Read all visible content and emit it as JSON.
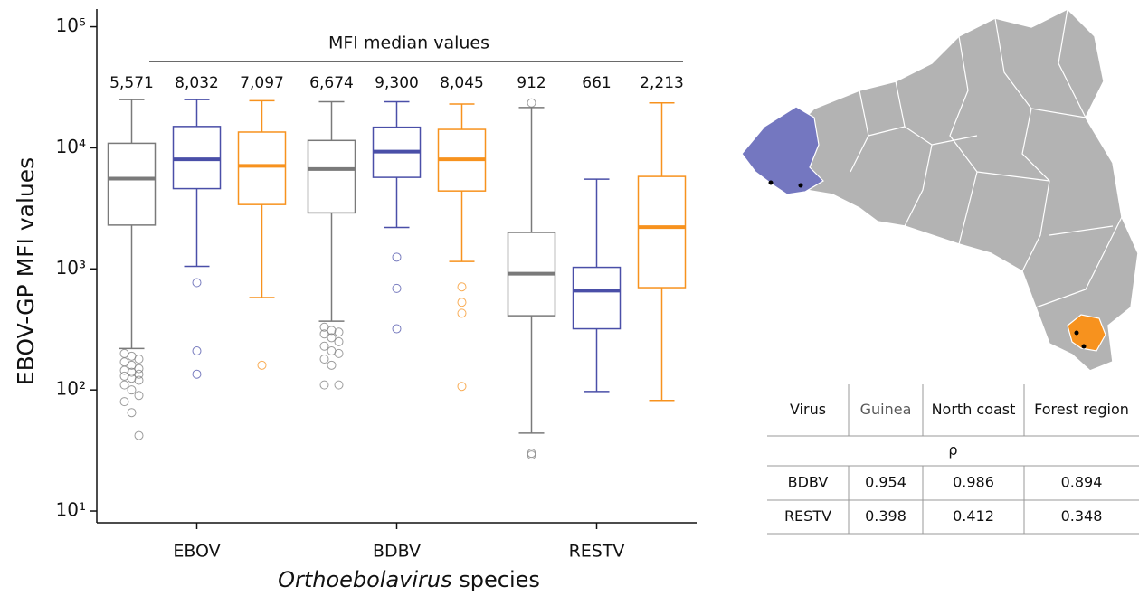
{
  "chart_data": {
    "type": "box",
    "log_y": true,
    "ylabel": "EBOV-GP MFI values",
    "xlabel": [
      "Orthoebolavirus",
      "species"
    ],
    "annotation": "MFI median values",
    "categories": [
      "EBOV",
      "BDBV",
      "RESTV"
    ],
    "ylim": [
      8,
      140000
    ],
    "yticks": [
      {
        "value": 10,
        "label": "10¹"
      },
      {
        "value": 100,
        "label": "10²"
      },
      {
        "value": 1000,
        "label": "10³"
      },
      {
        "value": 10000,
        "label": "10⁴"
      },
      {
        "value": 100000,
        "label": "10⁵"
      }
    ],
    "series": [
      {
        "name": "Guinea",
        "color": "#7a7a7a",
        "low": [
          220,
          370,
          44
        ],
        "q1": [
          2300,
          2900,
          410
        ],
        "median": [
          5571,
          6674,
          912
        ],
        "q3": [
          10900,
          11500,
          2000
        ],
        "high": [
          25000,
          24000,
          21500
        ],
        "median_labels": [
          "5,571",
          "6,674",
          "912"
        ],
        "outliers": [
          [
            200,
            190,
            180,
            170,
            160,
            150,
            145,
            140,
            135,
            130,
            125,
            120,
            110,
            100,
            90,
            80,
            65,
            42
          ],
          [
            330,
            310,
            300,
            290,
            270,
            250,
            230,
            210,
            200,
            180,
            160,
            110,
            110
          ],
          [
            23500,
            30,
            29
          ]
        ]
      },
      {
        "name": "North coast",
        "color": "#4a4fa8",
        "low": [
          1050,
          2200,
          97
        ],
        "q1": [
          4600,
          5700,
          320
        ],
        "median": [
          8032,
          9300,
          661
        ],
        "q3": [
          15000,
          14800,
          1030
        ],
        "high": [
          25000,
          24000,
          5500
        ],
        "median_labels": [
          "8,032",
          "9,300",
          "661"
        ],
        "outliers": [
          [
            770,
            210,
            135
          ],
          [
            1250,
            690,
            320
          ],
          []
        ]
      },
      {
        "name": "Forest region",
        "color": "#f7921e",
        "low": [
          580,
          1150,
          82
        ],
        "q1": [
          3400,
          4400,
          700
        ],
        "median": [
          7097,
          8045,
          2213
        ],
        "q3": [
          13500,
          14200,
          5800
        ],
        "high": [
          24500,
          23000,
          23500
        ],
        "median_labels": [
          "7,097",
          "8,045",
          "2,213"
        ],
        "outliers": [
          [
            160
          ],
          [
            710,
            530,
            430,
            107
          ],
          []
        ]
      }
    ]
  },
  "table": {
    "header": "Virus",
    "subheader": "ρ",
    "rows": [
      [
        "BDBV",
        0.954,
        0.986,
        0.894
      ],
      [
        "RESTV",
        0.398,
        0.412,
        0.348
      ]
    ]
  }
}
